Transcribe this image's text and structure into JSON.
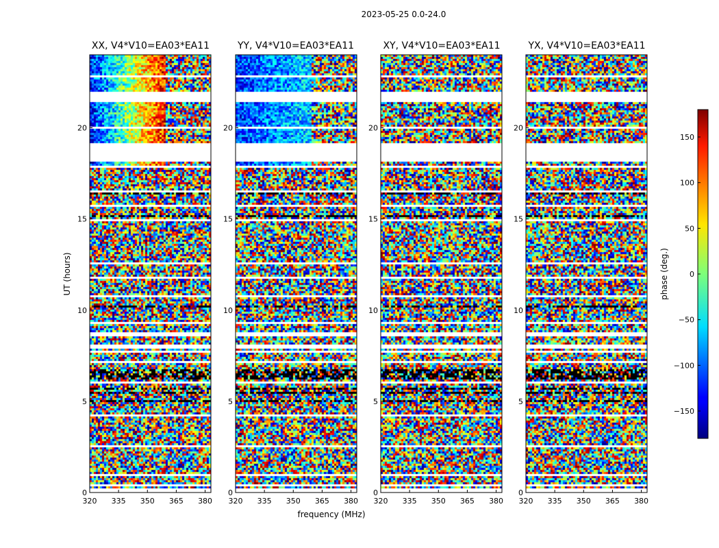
{
  "figure": {
    "suptitle": "2023-05-25 0.0-24.0",
    "ylabel": "UT (hours)",
    "xlabel": "frequency (MHz)",
    "colorbar_label": "phase (deg.)"
  },
  "chart_data": {
    "type": "heatmap",
    "title": "2023-05-25 0.0-24.0",
    "xlabel": "frequency (MHz)",
    "ylabel": "UT (hours)",
    "xlim": [
      320,
      383
    ],
    "ylim": [
      0,
      24
    ],
    "x_ticks": [
      320,
      335,
      350,
      365,
      380
    ],
    "y_ticks": [
      0,
      5,
      10,
      15,
      20
    ],
    "colorbar": {
      "label": "phase (deg.)",
      "range": [
        -180,
        180
      ],
      "ticks": [
        150,
        100,
        50,
        0,
        -50,
        -100,
        -150
      ],
      "tick_labels": [
        "150",
        "100",
        "50",
        "0",
        "−50",
        "−100",
        "−150"
      ],
      "colormap": "jet"
    },
    "panels": [
      {
        "title": "XX, V4*V10=EA03*EA11",
        "pattern": "gradient-warm"
      },
      {
        "title": "YY, V4*V10=EA03*EA11",
        "pattern": "gradient-cool"
      },
      {
        "title": "XY, V4*V10=EA03*EA11",
        "pattern": "noise"
      },
      {
        "title": "YX, V4*V10=EA03*EA11",
        "pattern": "noise"
      }
    ],
    "gaps_hours": [
      [
        18.2,
        19.2
      ],
      [
        21.55,
        22.05
      ]
    ],
    "grid": false
  }
}
